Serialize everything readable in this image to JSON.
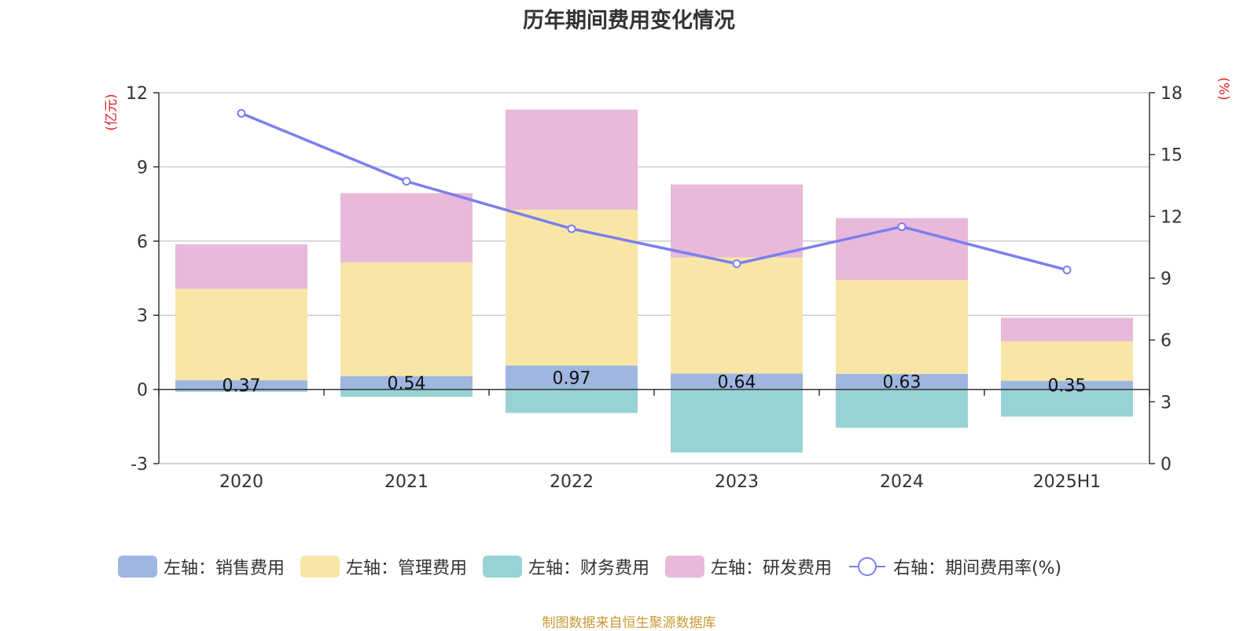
{
  "chart_data": {
    "type": "bar",
    "stacked": true,
    "title": "历年期间费用变化情况",
    "categories": [
      "2020",
      "2021",
      "2022",
      "2023",
      "2024",
      "2025H1"
    ],
    "y_left": {
      "unit_label": "(亿元)",
      "ylim": [
        -3,
        12
      ],
      "ticks": [
        "-3",
        "0",
        "3",
        "6",
        "9",
        "12"
      ]
    },
    "y_right": {
      "unit_label": "(%)",
      "ylim": [
        0,
        18
      ],
      "ticks": [
        "0",
        "3",
        "6",
        "9",
        "12",
        "15",
        "18"
      ]
    },
    "series": [
      {
        "name": "左轴：销售费用",
        "color": "#9eb6e0",
        "values": [
          0.37,
          0.54,
          0.97,
          0.64,
          0.63,
          0.35
        ],
        "data_labels": [
          "0.37",
          "0.54",
          "0.97",
          "0.64",
          "0.63",
          "0.35"
        ]
      },
      {
        "name": "左轴：管理费用",
        "color": "#f8e6a6",
        "values": [
          3.7,
          4.6,
          6.3,
          4.7,
          3.8,
          1.6
        ]
      },
      {
        "name": "左轴：财务费用",
        "color": "#97d3d4",
        "values": [
          -0.1,
          -0.3,
          -0.95,
          -2.55,
          -1.55,
          -1.1
        ]
      },
      {
        "name": "左轴：研发费用",
        "color": "#e8b9d8",
        "values": [
          1.8,
          2.8,
          4.05,
          2.95,
          2.5,
          0.95
        ]
      }
    ],
    "line_series": {
      "name": "右轴：期间费用率(%)",
      "color": "#7b7fef",
      "values": [
        17.0,
        13.7,
        11.4,
        9.7,
        11.5,
        9.4
      ]
    },
    "grid": true,
    "legend_position": "bottom"
  },
  "source_note": "制图数据来自恒生聚源数据库"
}
